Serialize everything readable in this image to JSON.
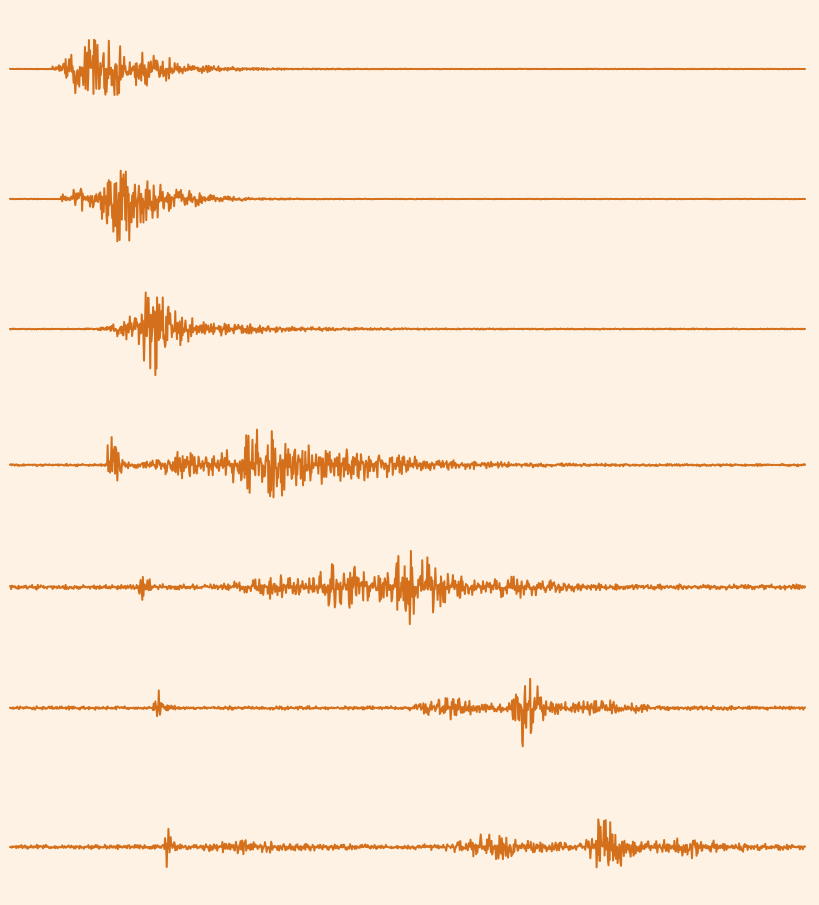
{
  "colors": {
    "background": "#fdf2e3",
    "trace": "#d4701c"
  },
  "chart_data": {
    "type": "line",
    "title": "",
    "xlabel": "",
    "ylabel": "",
    "grid": false,
    "legend": "none",
    "xlim": [
      0,
      1
    ],
    "series": [
      {
        "onset": 0.053,
        "noise": 0.3,
        "envelopes": [
          {
            "center": 0.105,
            "width": 0.04,
            "amp": 44,
            "freq": 1.0
          },
          {
            "center": 0.17,
            "width": 0.06,
            "amp": 14,
            "freq": 0.9
          }
        ]
      },
      {
        "onset": 0.063,
        "noise": 0.3,
        "envelopes": [
          {
            "center": 0.145,
            "width": 0.035,
            "amp": 48,
            "freq": 1.0
          },
          {
            "center": 0.09,
            "width": 0.03,
            "amp": 14,
            "freq": 0.9
          },
          {
            "center": 0.2,
            "width": 0.05,
            "amp": 9,
            "freq": 0.9
          }
        ]
      },
      {
        "onset": 0.082,
        "noise": 0.5,
        "envelopes": [
          {
            "center": 0.185,
            "width": 0.03,
            "amp": 42,
            "freq": 1.0
          },
          {
            "center": 0.16,
            "width": 0.04,
            "amp": 13,
            "freq": 0.8
          },
          {
            "center": 0.3,
            "width": 0.1,
            "amp": 4,
            "freq": 0.9
          }
        ]
      },
      {
        "onset": 0.122,
        "noise": 1.2,
        "envelopes": [
          {
            "center": 0.128,
            "width": 0.008,
            "amp": 42,
            "freq": 1.0
          },
          {
            "center": 0.33,
            "width": 0.065,
            "amp": 40,
            "freq": 0.8
          },
          {
            "center": 0.46,
            "width": 0.09,
            "amp": 12,
            "freq": 0.7
          },
          {
            "center": 0.22,
            "width": 0.05,
            "amp": 14,
            "freq": 0.9
          }
        ]
      },
      {
        "onset": 0.162,
        "noise": 2.6,
        "envelopes": [
          {
            "center": 0.167,
            "width": 0.006,
            "amp": 40,
            "freq": 1.0
          },
          {
            "center": 0.51,
            "width": 0.04,
            "amp": 40,
            "freq": 0.8
          },
          {
            "center": 0.42,
            "width": 0.05,
            "amp": 22,
            "freq": 0.8
          },
          {
            "center": 0.33,
            "width": 0.06,
            "amp": 12,
            "freq": 0.8
          },
          {
            "center": 0.64,
            "width": 0.06,
            "amp": 8,
            "freq": 0.7
          }
        ]
      },
      {
        "onset": 0.18,
        "noise": 1.8,
        "envelopes": [
          {
            "center": 0.186,
            "width": 0.007,
            "amp": 22,
            "freq": 1.0
          },
          {
            "center": 0.65,
            "width": 0.02,
            "amp": 44,
            "freq": 0.85
          },
          {
            "center": 0.56,
            "width": 0.05,
            "amp": 12,
            "freq": 0.6
          },
          {
            "center": 0.75,
            "width": 0.05,
            "amp": 7,
            "freq": 0.8
          }
        ]
      },
      {
        "onset": 0.193,
        "noise": 2.4,
        "envelopes": [
          {
            "center": 0.198,
            "width": 0.006,
            "amp": 24,
            "freq": 1.0
          },
          {
            "center": 0.75,
            "width": 0.022,
            "amp": 48,
            "freq": 0.85
          },
          {
            "center": 0.61,
            "width": 0.06,
            "amp": 13,
            "freq": 0.6
          },
          {
            "center": 0.3,
            "width": 0.06,
            "amp": 6,
            "freq": 0.8
          },
          {
            "center": 0.86,
            "width": 0.05,
            "amp": 9,
            "freq": 0.8
          }
        ]
      }
    ]
  }
}
